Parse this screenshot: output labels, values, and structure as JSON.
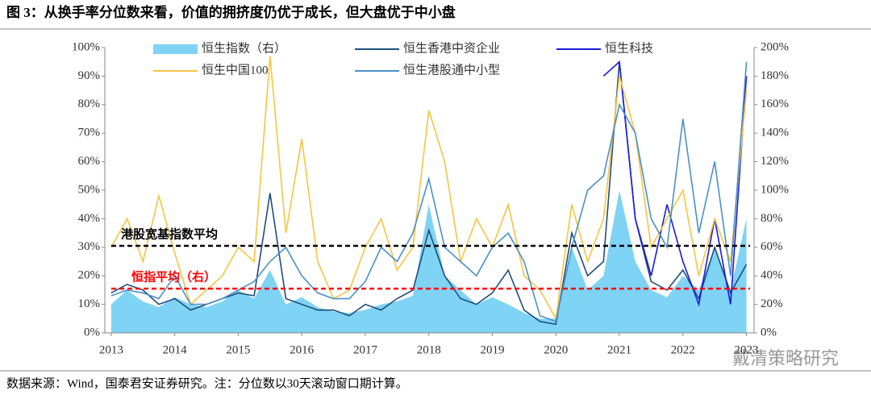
{
  "chart_data": {
    "type": "line",
    "title": "图 3：从换手率分位数来看，价值的拥挤度仍优于成长，但大盘优于中小盘",
    "source": "数据来源：Wind，国泰君安证券研究。注：分位数以30天滚动窗口期计算。",
    "watermark": "戴清策略研究",
    "x": [
      2013,
      2013.25,
      2013.5,
      2013.75,
      2014,
      2014.25,
      2014.5,
      2014.75,
      2015,
      2015.25,
      2015.5,
      2015.75,
      2016,
      2016.25,
      2016.5,
      2016.75,
      2017,
      2017.25,
      2017.5,
      2017.75,
      2018,
      2018.25,
      2018.5,
      2018.75,
      2019,
      2019.25,
      2019.5,
      2019.75,
      2020,
      2020.25,
      2020.5,
      2020.75,
      2021,
      2021.25,
      2021.5,
      2021.75,
      2022,
      2022.25,
      2022.5,
      2022.75,
      2023
    ],
    "xlim": [
      2012.9,
      2023.12
    ],
    "xticks": [
      2013,
      2014,
      2015,
      2016,
      2017,
      2018,
      2019,
      2020,
      2021,
      2022,
      2023
    ],
    "ylim": [
      0,
      100
    ],
    "yticks": [
      {
        "value": 0,
        "label": "0%"
      },
      {
        "value": 10,
        "label": "10%"
      },
      {
        "value": 20,
        "label": "20%"
      },
      {
        "value": 30,
        "label": "30%"
      },
      {
        "value": 40,
        "label": "40%"
      },
      {
        "value": 50,
        "label": "50%"
      },
      {
        "value": 60,
        "label": "60%"
      },
      {
        "value": 70,
        "label": "70%"
      },
      {
        "value": 80,
        "label": "80%"
      },
      {
        "value": 90,
        "label": "90%"
      },
      {
        "value": 100,
        "label": "100%"
      }
    ],
    "y2lim": [
      0,
      200
    ],
    "y2ticks": [
      {
        "value": 0,
        "label": "0%"
      },
      {
        "value": 20,
        "label": "20%"
      },
      {
        "value": 40,
        "label": "40%"
      },
      {
        "value": 60,
        "label": "60%"
      },
      {
        "value": 80,
        "label": "80%"
      },
      {
        "value": 100,
        "label": "100%"
      },
      {
        "value": 120,
        "label": "120%"
      },
      {
        "value": 140,
        "label": "140%"
      },
      {
        "value": 160,
        "label": "160%"
      },
      {
        "value": 180,
        "label": "180%"
      },
      {
        "value": 200,
        "label": "200%"
      }
    ],
    "series": [
      {
        "name": "恒生指数（右）",
        "color": "#7fd3f5",
        "kind": "area",
        "axis": "y2",
        "values": [
          20,
          30,
          22,
          18,
          25,
          20,
          18,
          22,
          30,
          24,
          44,
          20,
          25,
          18,
          15,
          14,
          16,
          20,
          22,
          26,
          90,
          40,
          30,
          20,
          25,
          20,
          14,
          10,
          10,
          60,
          30,
          40,
          100,
          50,
          30,
          25,
          40,
          30,
          60,
          30,
          80
        ]
      },
      {
        "name": "恒生香港中资企业",
        "color": "#1f4e79",
        "values": [
          14,
          17,
          15,
          10,
          12,
          8,
          10,
          12,
          14,
          13,
          49,
          12,
          10,
          8,
          8,
          6,
          10,
          8,
          12,
          15,
          36,
          20,
          12,
          10,
          14,
          22,
          8,
          4,
          3,
          35,
          20,
          25,
          95,
          40,
          18,
          15,
          22,
          12,
          30,
          14,
          24
        ]
      },
      {
        "name": "恒生科技",
        "color": "#1a1adc",
        "values": [
          null,
          null,
          null,
          null,
          null,
          null,
          null,
          null,
          null,
          null,
          null,
          null,
          null,
          null,
          null,
          null,
          null,
          null,
          null,
          null,
          null,
          null,
          null,
          null,
          null,
          null,
          null,
          null,
          null,
          null,
          null,
          90,
          95,
          40,
          20,
          45,
          25,
          10,
          40,
          10,
          90
        ]
      },
      {
        "name": "恒生中国100",
        "color": "#f5c542",
        "values": [
          30,
          40,
          25,
          48,
          28,
          10,
          15,
          20,
          30,
          25,
          97,
          35,
          68,
          25,
          12,
          15,
          30,
          40,
          22,
          30,
          78,
          60,
          25,
          40,
          30,
          45,
          20,
          15,
          5,
          45,
          25,
          40,
          90,
          70,
          30,
          40,
          50,
          20,
          40,
          25,
          85
        ]
      },
      {
        "name": "恒生港股通中小型",
        "color": "#4a90c8",
        "values": [
          13,
          15,
          14,
          12,
          20,
          10,
          10,
          12,
          15,
          18,
          25,
          30,
          20,
          14,
          12,
          12,
          18,
          30,
          25,
          35,
          54,
          30,
          25,
          20,
          30,
          35,
          25,
          6,
          4,
          30,
          50,
          55,
          80,
          70,
          40,
          30,
          75,
          35,
          60,
          20,
          95
        ]
      }
    ],
    "reference_lines": [
      {
        "label": "港股宽基指数平均",
        "value": 30.5,
        "color": "#000000"
      },
      {
        "label": "恒指平均（右）",
        "value": 15.5,
        "color": "#ff0000"
      }
    ]
  }
}
